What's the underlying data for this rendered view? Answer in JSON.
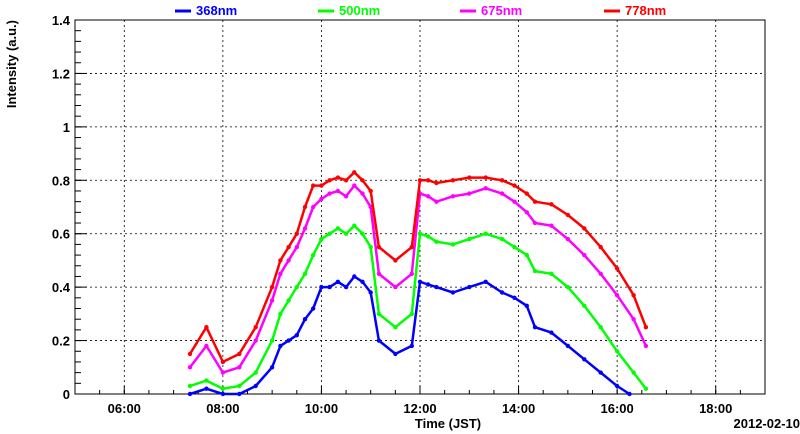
{
  "chart_data": {
    "type": "scatter",
    "xlabel": "Time (JST)",
    "ylabel": "Intensity (a.u.)",
    "date_label": "2012-02-10",
    "xlim": [
      "05:00",
      "19:00"
    ],
    "ylim": [
      0,
      1.4
    ],
    "x_ticks": [
      "06:00",
      "08:00",
      "10:00",
      "12:00",
      "14:00",
      "16:00",
      "18:00"
    ],
    "y_ticks": [
      "0",
      "0.2",
      "0.4",
      "0.6",
      "0.8",
      "1",
      "1.2",
      "1.4"
    ],
    "grid": true,
    "legend_position": "top",
    "series": [
      {
        "name": "368nm",
        "color": "#0000ff",
        "points": [
          [
            "07:20",
            0.0
          ],
          [
            "07:40",
            0.02
          ],
          [
            "08:00",
            0.0
          ],
          [
            "08:20",
            0.0
          ],
          [
            "08:40",
            0.03
          ],
          [
            "09:00",
            0.1
          ],
          [
            "09:10",
            0.18
          ],
          [
            "09:20",
            0.2
          ],
          [
            "09:30",
            0.22
          ],
          [
            "09:40",
            0.28
          ],
          [
            "09:50",
            0.32
          ],
          [
            "10:00",
            0.4
          ],
          [
            "10:10",
            0.4
          ],
          [
            "10:20",
            0.42
          ],
          [
            "10:30",
            0.4
          ],
          [
            "10:40",
            0.44
          ],
          [
            "10:50",
            0.42
          ],
          [
            "11:00",
            0.38
          ],
          [
            "11:10",
            0.2
          ],
          [
            "11:30",
            0.15
          ],
          [
            "11:50",
            0.18
          ],
          [
            "12:00",
            0.42
          ],
          [
            "12:10",
            0.41
          ],
          [
            "12:20",
            0.4
          ],
          [
            "12:40",
            0.38
          ],
          [
            "13:00",
            0.4
          ],
          [
            "13:20",
            0.42
          ],
          [
            "13:40",
            0.38
          ],
          [
            "13:55",
            0.36
          ],
          [
            "14:10",
            0.33
          ],
          [
            "14:20",
            0.25
          ],
          [
            "14:40",
            0.23
          ],
          [
            "15:00",
            0.18
          ],
          [
            "15:20",
            0.13
          ],
          [
            "15:40",
            0.08
          ],
          [
            "16:00",
            0.03
          ],
          [
            "16:15",
            0.0
          ]
        ]
      },
      {
        "name": "500nm",
        "color": "#00ff00",
        "points": [
          [
            "07:20",
            0.03
          ],
          [
            "07:40",
            0.05
          ],
          [
            "08:00",
            0.02
          ],
          [
            "08:20",
            0.03
          ],
          [
            "08:40",
            0.08
          ],
          [
            "09:00",
            0.2
          ],
          [
            "09:10",
            0.3
          ],
          [
            "09:20",
            0.35
          ],
          [
            "09:30",
            0.4
          ],
          [
            "09:40",
            0.45
          ],
          [
            "09:50",
            0.52
          ],
          [
            "10:00",
            0.58
          ],
          [
            "10:10",
            0.6
          ],
          [
            "10:20",
            0.62
          ],
          [
            "10:30",
            0.6
          ],
          [
            "10:40",
            0.63
          ],
          [
            "10:50",
            0.6
          ],
          [
            "11:00",
            0.55
          ],
          [
            "11:10",
            0.3
          ],
          [
            "11:30",
            0.25
          ],
          [
            "11:50",
            0.3
          ],
          [
            "12:00",
            0.6
          ],
          [
            "12:10",
            0.59
          ],
          [
            "12:20",
            0.57
          ],
          [
            "12:40",
            0.56
          ],
          [
            "13:00",
            0.58
          ],
          [
            "13:20",
            0.6
          ],
          [
            "13:40",
            0.58
          ],
          [
            "13:55",
            0.55
          ],
          [
            "14:10",
            0.52
          ],
          [
            "14:20",
            0.46
          ],
          [
            "14:40",
            0.45
          ],
          [
            "15:00",
            0.4
          ],
          [
            "15:20",
            0.33
          ],
          [
            "15:40",
            0.25
          ],
          [
            "16:00",
            0.16
          ],
          [
            "16:20",
            0.08
          ],
          [
            "16:35",
            0.02
          ]
        ]
      },
      {
        "name": "675nm",
        "color": "#ff00ff",
        "points": [
          [
            "07:20",
            0.1
          ],
          [
            "07:40",
            0.18
          ],
          [
            "08:00",
            0.08
          ],
          [
            "08:20",
            0.1
          ],
          [
            "08:40",
            0.2
          ],
          [
            "09:00",
            0.35
          ],
          [
            "09:10",
            0.45
          ],
          [
            "09:20",
            0.5
          ],
          [
            "09:30",
            0.55
          ],
          [
            "09:40",
            0.62
          ],
          [
            "09:50",
            0.7
          ],
          [
            "10:00",
            0.73
          ],
          [
            "10:10",
            0.75
          ],
          [
            "10:20",
            0.76
          ],
          [
            "10:30",
            0.74
          ],
          [
            "10:40",
            0.78
          ],
          [
            "10:50",
            0.75
          ],
          [
            "11:00",
            0.7
          ],
          [
            "11:10",
            0.45
          ],
          [
            "11:30",
            0.4
          ],
          [
            "11:50",
            0.45
          ],
          [
            "12:00",
            0.75
          ],
          [
            "12:10",
            0.74
          ],
          [
            "12:20",
            0.72
          ],
          [
            "12:40",
            0.74
          ],
          [
            "13:00",
            0.75
          ],
          [
            "13:20",
            0.77
          ],
          [
            "13:40",
            0.75
          ],
          [
            "13:55",
            0.72
          ],
          [
            "14:10",
            0.68
          ],
          [
            "14:20",
            0.64
          ],
          [
            "14:40",
            0.63
          ],
          [
            "15:00",
            0.58
          ],
          [
            "15:20",
            0.52
          ],
          [
            "15:40",
            0.45
          ],
          [
            "16:00",
            0.37
          ],
          [
            "16:20",
            0.28
          ],
          [
            "16:35",
            0.18
          ]
        ]
      },
      {
        "name": "778nm",
        "color": "#ff0000",
        "points": [
          [
            "07:20",
            0.15
          ],
          [
            "07:40",
            0.25
          ],
          [
            "08:00",
            0.12
          ],
          [
            "08:20",
            0.15
          ],
          [
            "08:40",
            0.25
          ],
          [
            "09:00",
            0.4
          ],
          [
            "09:10",
            0.5
          ],
          [
            "09:20",
            0.55
          ],
          [
            "09:30",
            0.6
          ],
          [
            "09:40",
            0.7
          ],
          [
            "09:50",
            0.78
          ],
          [
            "10:00",
            0.78
          ],
          [
            "10:10",
            0.8
          ],
          [
            "10:20",
            0.81
          ],
          [
            "10:30",
            0.8
          ],
          [
            "10:40",
            0.83
          ],
          [
            "10:50",
            0.8
          ],
          [
            "11:00",
            0.76
          ],
          [
            "11:10",
            0.55
          ],
          [
            "11:30",
            0.5
          ],
          [
            "11:50",
            0.55
          ],
          [
            "12:00",
            0.8
          ],
          [
            "12:10",
            0.8
          ],
          [
            "12:20",
            0.79
          ],
          [
            "12:40",
            0.8
          ],
          [
            "13:00",
            0.81
          ],
          [
            "13:20",
            0.81
          ],
          [
            "13:40",
            0.8
          ],
          [
            "13:55",
            0.78
          ],
          [
            "14:10",
            0.75
          ],
          [
            "14:20",
            0.72
          ],
          [
            "14:40",
            0.71
          ],
          [
            "15:00",
            0.67
          ],
          [
            "15:20",
            0.62
          ],
          [
            "15:40",
            0.55
          ],
          [
            "16:00",
            0.47
          ],
          [
            "16:20",
            0.37
          ],
          [
            "16:35",
            0.25
          ]
        ]
      }
    ]
  }
}
